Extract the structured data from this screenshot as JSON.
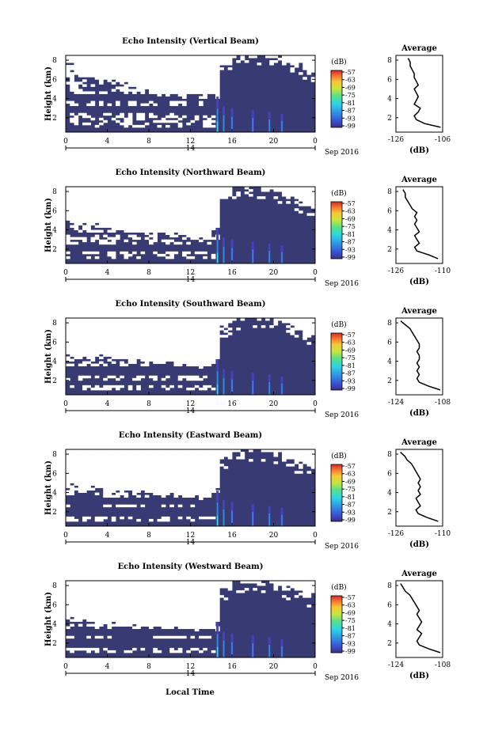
{
  "figure": {
    "xlabel": "Local Time",
    "date_label": "Sep 2016",
    "day_label": "14"
  },
  "chart_data": [
    {
      "type": "heatmap",
      "title": "Echo Intensity (Vertical Beam)",
      "xlabel": "Local Time",
      "ylabel": "Height (km)",
      "x_ticks": [
        "0",
        "4",
        "8",
        "12",
        "16",
        "20",
        "0"
      ],
      "xlim": [
        0,
        24
      ],
      "y_ticks": [
        "2",
        "4",
        "6",
        "8"
      ],
      "ylim": [
        0.5,
        8.5
      ],
      "colorbar": {
        "label": "(dB)",
        "ticks": [
          "-57",
          "-63",
          "-69",
          "-75",
          "-81",
          "-87",
          "-93",
          "-99"
        ]
      },
      "colors": {
        "background": "#373a73",
        "low": "#4240c4",
        "mid": "#2f8cdf",
        "high": "#35d6ee"
      },
      "echo_floor_km": [
        7.8,
        6.4,
        6.6,
        6.2,
        6.0,
        5.8,
        5.4,
        5.0,
        4.8,
        4.6,
        4.5,
        4.4,
        4.4,
        4.3,
        4.3,
        7.6,
        8.5,
        8.5,
        8.5,
        8.5,
        8.2,
        8.0,
        7.6,
        7.0,
        6.6
      ],
      "layers_km": [
        [
          2.6,
          3.3
        ],
        [
          3.8,
          4.4
        ]
      ],
      "plume_hours": [
        14.6,
        15.2,
        16.0,
        18.0,
        19.6,
        20.8
      ],
      "profile": {
        "title": "Average",
        "xlabel": "(dB)",
        "x_ticks": [
          "-126",
          "-106"
        ],
        "xlim": [
          -128,
          -105
        ],
        "y_ticks": [
          "2",
          "4",
          "6",
          "8"
        ],
        "ylim": [
          0.5,
          8.5
        ],
        "height_km": [
          1.0,
          1.4,
          1.8,
          2.2,
          2.6,
          3.0,
          3.4,
          3.8,
          4.2,
          4.6,
          5.0,
          5.4,
          5.8,
          6.2,
          6.6,
          7.0,
          7.4,
          7.8,
          8.2
        ],
        "values_db": [
          -106,
          -114,
          -118,
          -119,
          -117,
          -116,
          -119,
          -118,
          -117,
          -118,
          -119,
          -117,
          -118,
          -119,
          -119,
          -120,
          -121,
          -121,
          -122
        ]
      }
    },
    {
      "type": "heatmap",
      "title": "Echo Intensity (Northward Beam)",
      "xlabel": "Local Time",
      "ylabel": "Height (km)",
      "x_ticks": [
        "0",
        "4",
        "8",
        "12",
        "16",
        "20",
        "0"
      ],
      "xlim": [
        0,
        24
      ],
      "y_ticks": [
        "2",
        "4",
        "6",
        "8"
      ],
      "ylim": [
        0.5,
        8.5
      ],
      "colorbar": {
        "label": "(dB)",
        "ticks": [
          "-57",
          "-63",
          "-69",
          "-75",
          "-81",
          "-87",
          "-93",
          "-99"
        ]
      },
      "colors": {
        "background": "#373a73",
        "low": "#4240c4",
        "mid": "#2f8cdf",
        "high": "#35d6ee"
      },
      "echo_floor_km": [
        5.2,
        4.8,
        4.6,
        4.6,
        4.4,
        4.2,
        4.0,
        3.8,
        3.8,
        3.6,
        3.6,
        3.5,
        3.5,
        3.4,
        4.2,
        7.6,
        8.5,
        8.5,
        8.5,
        8.4,
        8.0,
        7.6,
        7.0,
        6.6,
        6.2
      ],
      "layers_km": [
        [
          1.8,
          2.6
        ],
        [
          3.4,
          3.8
        ]
      ],
      "plume_hours": [
        14.6,
        15.2,
        16.0,
        18.0,
        19.6,
        20.8
      ],
      "profile": {
        "title": "Average",
        "xlabel": "(dB)",
        "x_ticks": [
          "-126",
          "-110"
        ],
        "xlim": [
          -128,
          -108
        ],
        "height_km": [
          1.0,
          1.4,
          1.8,
          2.2,
          2.6,
          3.0,
          3.4,
          3.8,
          4.2,
          4.6,
          5.0,
          5.4,
          5.8,
          6.2,
          6.6,
          7.0,
          7.4,
          7.8,
          8.2
        ],
        "values_db": [
          -110,
          -114,
          -119,
          -120,
          -118,
          -119,
          -120,
          -118,
          -119,
          -120,
          -119,
          -120,
          -119,
          -121,
          -122,
          -123,
          -124,
          -124,
          -125
        ]
      }
    },
    {
      "type": "heatmap",
      "title": "Echo Intensity (Southward Beam)",
      "xlabel": "Local Time",
      "ylabel": "Height (km)",
      "x_ticks": [
        "0",
        "4",
        "8",
        "12",
        "16",
        "20",
        "0"
      ],
      "xlim": [
        0,
        24
      ],
      "y_ticks": [
        "2",
        "4",
        "6",
        "8"
      ],
      "ylim": [
        0.5,
        8.5
      ],
      "colorbar": {
        "label": "(dB)",
        "ticks": [
          "-57",
          "-63",
          "-69",
          "-75",
          "-81",
          "-87",
          "-93",
          "-99"
        ]
      },
      "colors": {
        "background": "#373a73",
        "low": "#4240c4",
        "mid": "#2f8cdf",
        "high": "#35d6ee"
      },
      "echo_floor_km": [
        4.8,
        4.6,
        4.6,
        4.8,
        4.6,
        4.6,
        4.4,
        4.2,
        4.2,
        4.0,
        4.0,
        3.8,
        3.8,
        3.6,
        4.4,
        7.8,
        8.5,
        8.5,
        8.5,
        8.5,
        8.2,
        7.8,
        7.4,
        7.0,
        6.8
      ],
      "layers_km": [
        [
          1.4,
          2.0
        ],
        [
          2.6,
          3.4
        ]
      ],
      "plume_hours": [
        14.6,
        15.2,
        16.0,
        18.0,
        19.6,
        20.8
      ],
      "profile": {
        "title": "Average",
        "xlabel": "(dB)",
        "x_ticks": [
          "-124",
          "-108"
        ],
        "xlim": [
          -126,
          -106
        ],
        "height_km": [
          1.0,
          1.4,
          1.8,
          2.2,
          2.6,
          3.0,
          3.4,
          3.8,
          4.2,
          4.6,
          5.0,
          5.4,
          5.8,
          6.2,
          6.6,
          7.0,
          7.4,
          7.8,
          8.2
        ],
        "values_db": [
          -107,
          -112,
          -116,
          -117,
          -116,
          -117,
          -116,
          -117,
          -116,
          -116,
          -117,
          -116,
          -116,
          -117,
          -118,
          -119,
          -120,
          -122,
          -124
        ]
      }
    },
    {
      "type": "heatmap",
      "title": "Echo Intensity (Eastward Beam)",
      "xlabel": "Local Time",
      "ylabel": "Height (km)",
      "x_ticks": [
        "0",
        "4",
        "8",
        "12",
        "16",
        "20",
        "0"
      ],
      "xlim": [
        0,
        24
      ],
      "y_ticks": [
        "2",
        "4",
        "6",
        "8"
      ],
      "ylim": [
        0.5,
        8.5
      ],
      "colorbar": {
        "label": "(dB)",
        "ticks": [
          "-57",
          "-63",
          "-69",
          "-75",
          "-81",
          "-87",
          "-93",
          "-99"
        ]
      },
      "colors": {
        "background": "#373a73",
        "low": "#4240c4",
        "mid": "#2f8cdf",
        "high": "#35d6ee"
      },
      "echo_floor_km": [
        5.0,
        4.8,
        4.8,
        4.6,
        4.6,
        4.4,
        4.4,
        4.2,
        4.2,
        4.0,
        4.0,
        3.8,
        3.8,
        3.6,
        4.4,
        7.6,
        8.5,
        8.5,
        8.5,
        8.4,
        8.0,
        7.6,
        7.2,
        6.8,
        6.4
      ],
      "layers_km": [
        [
          1.4,
          2.4
        ],
        [
          2.8,
          3.4
        ]
      ],
      "plume_hours": [
        14.6,
        15.2,
        16.0,
        18.0,
        19.6,
        20.8
      ],
      "profile": {
        "title": "Average",
        "xlabel": "(dB)",
        "x_ticks": [
          "-126",
          "-110"
        ],
        "xlim": [
          -128,
          -107
        ],
        "height_km": [
          1.0,
          1.4,
          1.8,
          2.2,
          2.6,
          3.0,
          3.4,
          3.8,
          4.2,
          4.6,
          5.0,
          5.4,
          5.8,
          6.2,
          6.6,
          7.0,
          7.4,
          7.8,
          8.2
        ],
        "values_db": [
          -109,
          -114,
          -118,
          -119,
          -117,
          -118,
          -119,
          -117,
          -118,
          -117,
          -118,
          -117,
          -118,
          -119,
          -120,
          -121,
          -123,
          -124,
          -126
        ]
      }
    },
    {
      "type": "heatmap",
      "title": "Echo Intensity (Westward Beam)",
      "xlabel": "Local Time",
      "ylabel": "Height (km)",
      "x_ticks": [
        "0",
        "4",
        "8",
        "12",
        "16",
        "20",
        "0"
      ],
      "xlim": [
        0,
        24
      ],
      "y_ticks": [
        "2",
        "4",
        "6",
        "8"
      ],
      "ylim": [
        0.5,
        8.5
      ],
      "colorbar": {
        "label": "(dB)",
        "ticks": [
          "-57",
          "-63",
          "-69",
          "-75",
          "-81",
          "-87",
          "-93",
          "-99"
        ]
      },
      "colors": {
        "background": "#373a73",
        "low": "#4240c4",
        "mid": "#2f8cdf",
        "high": "#35d6ee"
      },
      "echo_floor_km": [
        5.0,
        4.6,
        4.6,
        4.4,
        4.4,
        4.2,
        4.2,
        4.0,
        4.0,
        3.8,
        3.8,
        3.6,
        3.6,
        3.6,
        4.4,
        7.8,
        8.5,
        8.5,
        8.5,
        8.4,
        8.2,
        7.8,
        7.4,
        7.0,
        6.8
      ],
      "layers_km": [
        [
          1.4,
          2.4
        ],
        [
          2.8,
          3.6
        ]
      ],
      "plume_hours": [
        14.6,
        15.2,
        16.0,
        18.0,
        19.6,
        20.8
      ],
      "profile": {
        "title": "Average",
        "xlabel": "(dB)",
        "x_ticks": [
          "-124",
          "-108"
        ],
        "xlim": [
          -126,
          -106
        ],
        "height_km": [
          1.0,
          1.4,
          1.8,
          2.2,
          2.6,
          3.0,
          3.4,
          3.8,
          4.2,
          4.6,
          5.0,
          5.4,
          5.8,
          6.2,
          6.6,
          7.0,
          7.4,
          7.8,
          8.2
        ],
        "values_db": [
          -107,
          -112,
          -116,
          -117,
          -116,
          -115,
          -117,
          -116,
          -115,
          -116,
          -117,
          -116,
          -117,
          -118,
          -119,
          -120,
          -122,
          -123,
          -124
        ]
      }
    }
  ]
}
